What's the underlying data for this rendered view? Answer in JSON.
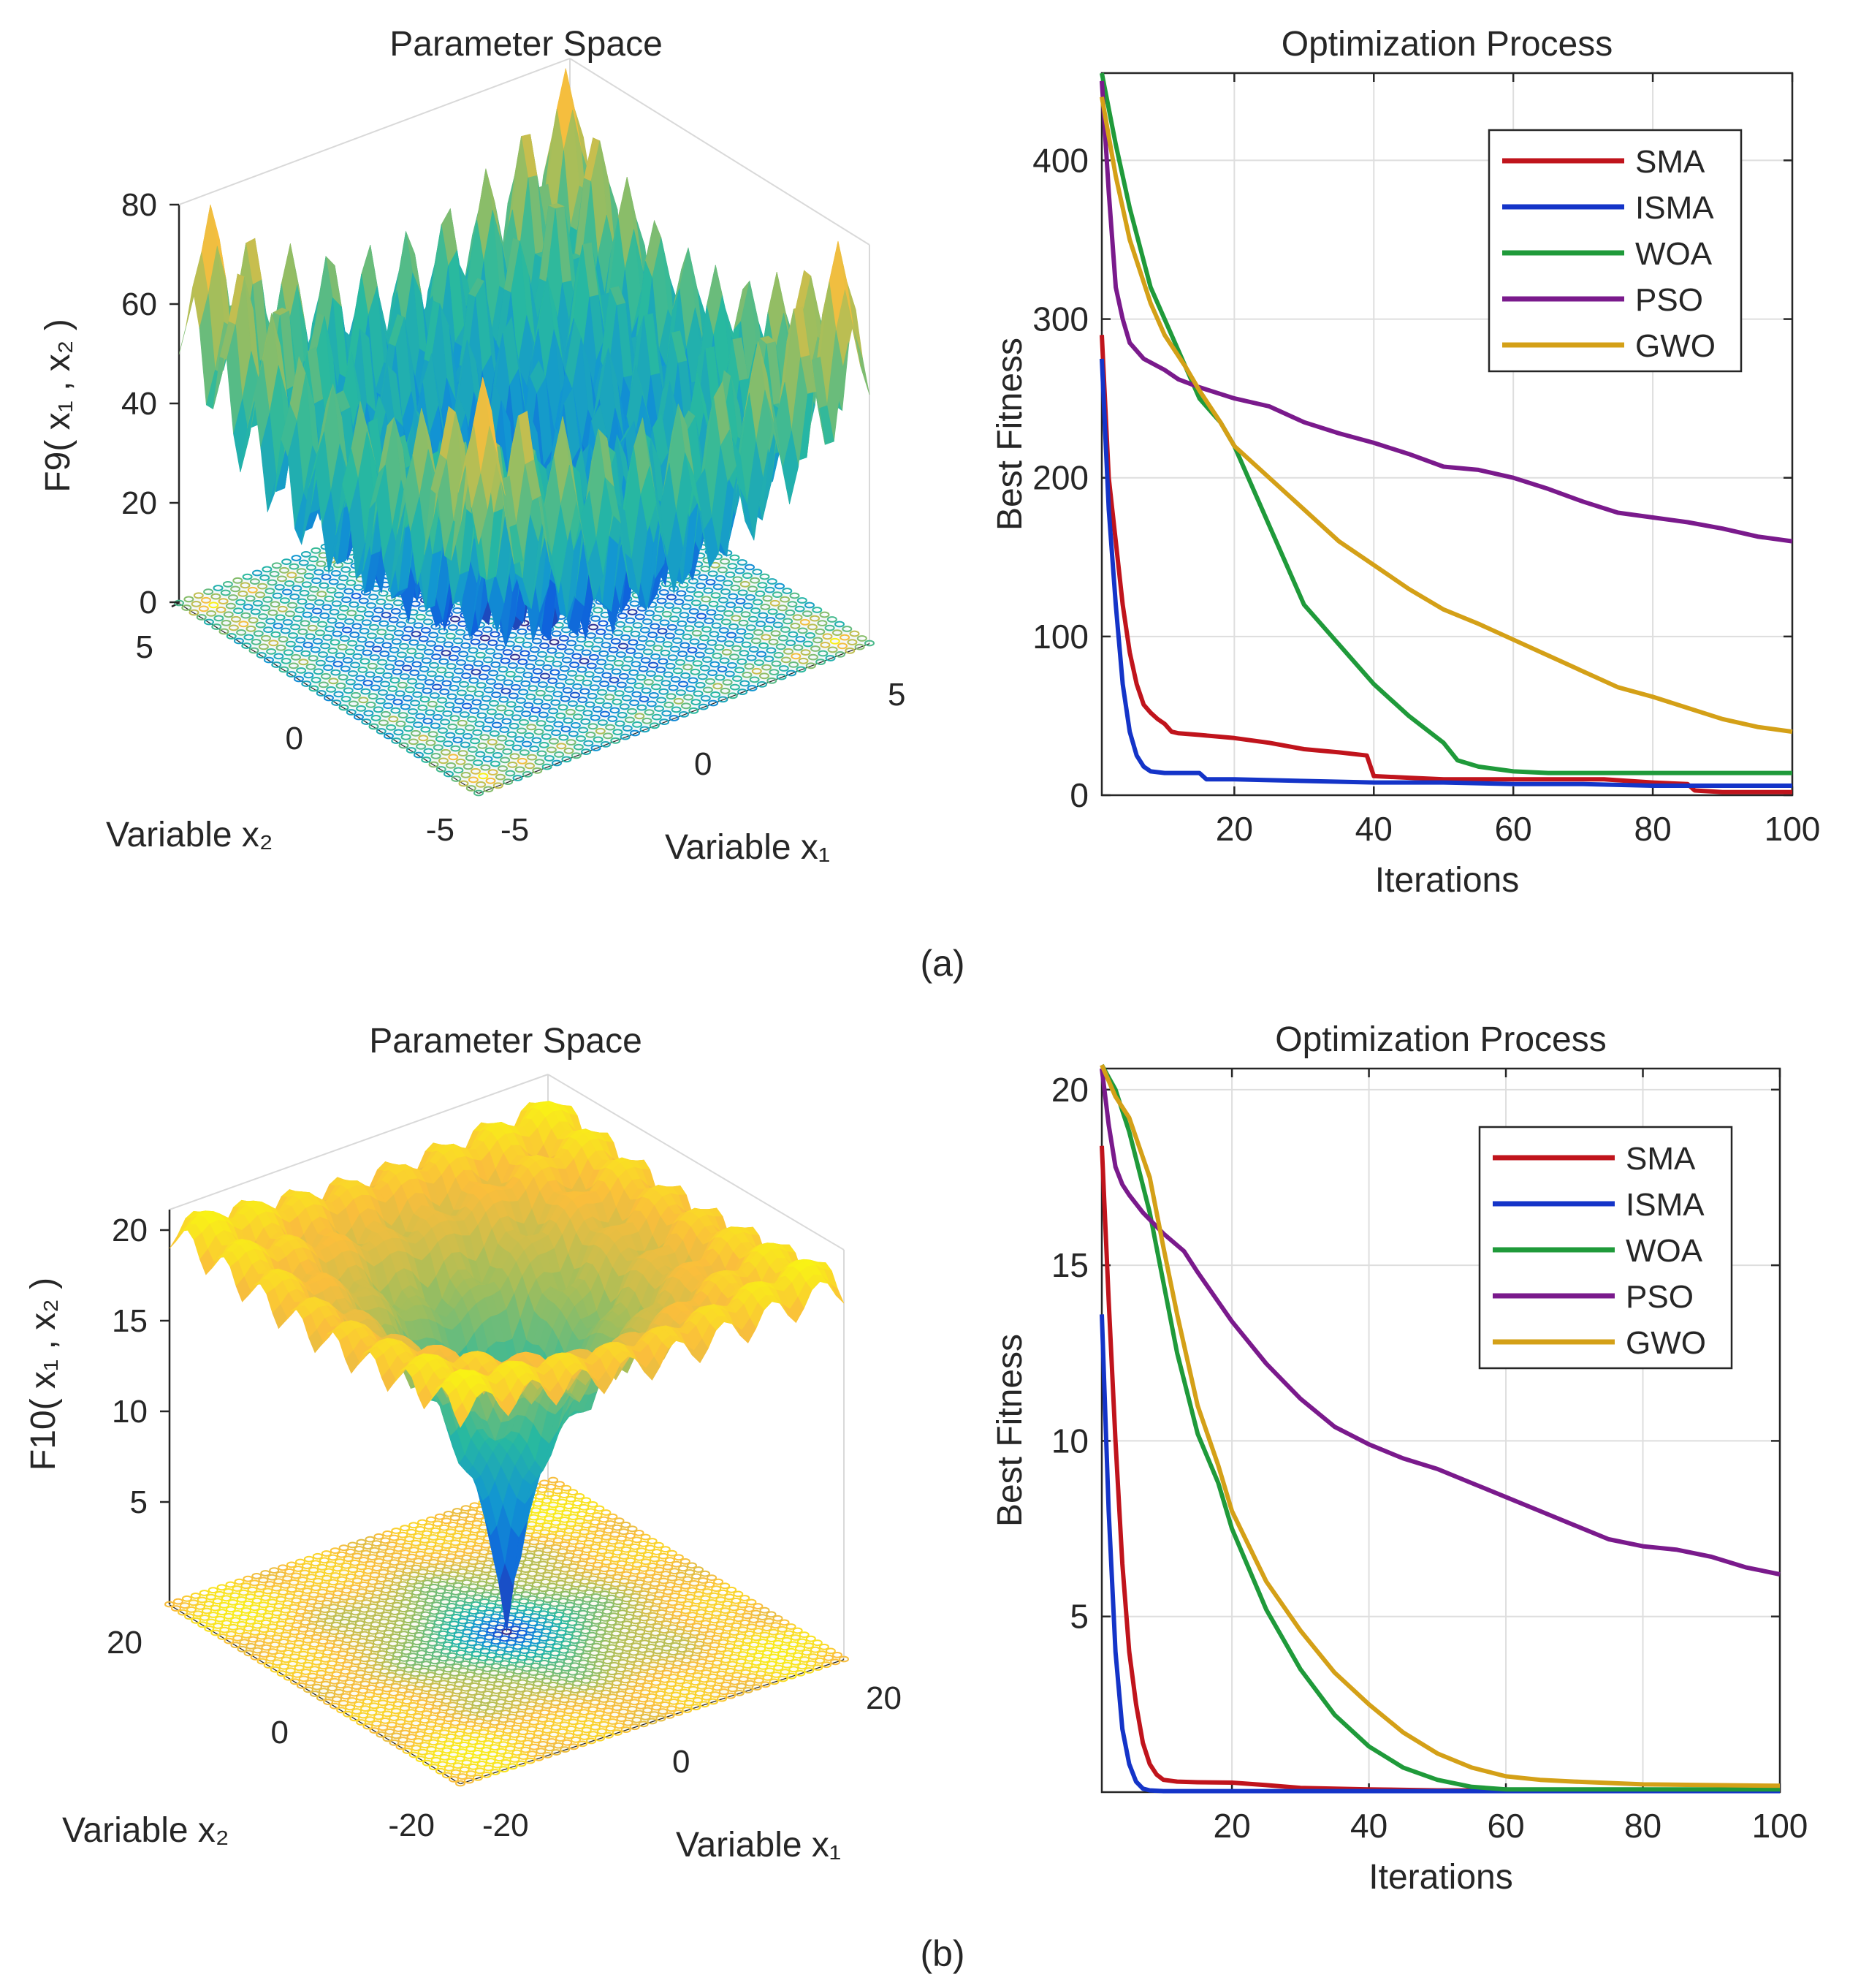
{
  "figure": {
    "panel_labels": [
      "(a)",
      "(b)"
    ]
  },
  "colors": {
    "SMA": "#c0141c",
    "ISMA": "#1434c8",
    "WOA": "#1f9a3a",
    "PSO": "#7a1a8c",
    "GWO": "#d4a017",
    "axis": "#262626",
    "grid": "#dedede"
  },
  "chart_data": [
    {
      "id": "a-surface",
      "type": "surface3d",
      "title": "Parameter Space",
      "function_label": "F9( x₁ , x₂ )",
      "function_name": "F9",
      "xlabel": "Variable x₁",
      "ylabel": "Variable x₂",
      "zlabel_ticks": [
        "0",
        "20",
        "40",
        "60",
        "80"
      ],
      "z_range": [
        0,
        80
      ],
      "x_ticks": [
        "-5",
        "0",
        "5"
      ],
      "y_ticks": [
        "-5",
        "0",
        "5"
      ],
      "x_range": [
        -5,
        5
      ],
      "y_range": [
        -5,
        5
      ],
      "function": "rastrigin"
    },
    {
      "id": "a-convergence",
      "type": "line",
      "title": "Optimization Process",
      "xlabel": "Iterations",
      "ylabel": "Best Fitness",
      "xlim": [
        1,
        100
      ],
      "ylim": [
        0,
        455
      ],
      "xticks": [
        20,
        40,
        60,
        80,
        100
      ],
      "yticks": [
        0,
        100,
        200,
        300,
        400
      ],
      "legend": [
        "SMA",
        "ISMA",
        "WOA",
        "PSO",
        "GWO"
      ],
      "series": [
        {
          "name": "SMA",
          "x": [
            1,
            2,
            3,
            4,
            5,
            6,
            7,
            8,
            9,
            10,
            11,
            12,
            15,
            20,
            25,
            30,
            35,
            39,
            40,
            45,
            50,
            60,
            70,
            73,
            80,
            85,
            86,
            90,
            100
          ],
          "y": [
            290,
            200,
            160,
            120,
            90,
            70,
            57,
            52,
            48,
            45,
            40,
            39,
            38,
            36,
            33,
            29,
            27,
            25,
            12,
            11,
            10,
            10,
            10,
            10,
            8,
            7,
            3,
            2,
            2
          ]
        },
        {
          "name": "ISMA",
          "x": [
            1,
            2,
            3,
            4,
            5,
            6,
            7,
            8,
            10,
            15,
            16,
            20,
            30,
            40,
            50,
            60,
            70,
            80,
            90,
            100
          ],
          "y": [
            275,
            180,
            120,
            70,
            40,
            25,
            18,
            15,
            14,
            14,
            10,
            10,
            9,
            8,
            8,
            7,
            7,
            6,
            6,
            6
          ]
        },
        {
          "name": "WOA",
          "x": [
            1,
            3,
            5,
            8,
            10,
            13,
            15,
            18,
            20,
            25,
            30,
            35,
            40,
            45,
            50,
            52,
            55,
            60,
            65,
            70,
            80,
            90,
            100
          ],
          "y": [
            455,
            410,
            370,
            320,
            300,
            270,
            250,
            235,
            220,
            170,
            120,
            95,
            70,
            50,
            33,
            22,
            18,
            15,
            14,
            14,
            14,
            14,
            14
          ]
        },
        {
          "name": "PSO",
          "x": [
            1,
            2,
            3,
            4,
            5,
            7,
            10,
            12,
            15,
            20,
            25,
            30,
            35,
            40,
            45,
            50,
            55,
            60,
            65,
            70,
            75,
            80,
            85,
            90,
            95,
            100
          ],
          "y": [
            450,
            380,
            320,
            300,
            285,
            275,
            268,
            262,
            257,
            250,
            245,
            235,
            228,
            222,
            215,
            207,
            205,
            200,
            193,
            185,
            178,
            175,
            172,
            168,
            163,
            160
          ]
        },
        {
          "name": "GWO",
          "x": [
            1,
            3,
            5,
            8,
            10,
            13,
            15,
            18,
            20,
            25,
            30,
            35,
            40,
            45,
            50,
            55,
            60,
            65,
            70,
            75,
            80,
            85,
            90,
            95,
            100
          ],
          "y": [
            440,
            390,
            350,
            310,
            290,
            270,
            255,
            235,
            220,
            200,
            180,
            160,
            145,
            130,
            117,
            108,
            98,
            88,
            78,
            68,
            62,
            55,
            48,
            43,
            40
          ]
        }
      ]
    },
    {
      "id": "b-surface",
      "type": "surface3d",
      "title": "Parameter Space",
      "function_label": "F10( x₁ , x₂ )",
      "function_name": "F10",
      "xlabel": "Variable x₁",
      "ylabel": "Variable x₂",
      "zlabel_ticks": [
        "5",
        "10",
        "15",
        "20"
      ],
      "z_range": [
        0,
        22
      ],
      "x_ticks": [
        "-20",
        "0",
        "20"
      ],
      "y_ticks": [
        "-20",
        "0",
        "20"
      ],
      "x_range": [
        -20,
        20
      ],
      "y_range": [
        -20,
        20
      ],
      "function": "ackley"
    },
    {
      "id": "b-convergence",
      "type": "line",
      "title": "Optimization Process",
      "xlabel": "Iterations",
      "ylabel": "Best Fitness",
      "xlim": [
        1,
        100
      ],
      "ylim": [
        0,
        20.6
      ],
      "xticks": [
        20,
        40,
        60,
        80,
        100
      ],
      "yticks": [
        5,
        10,
        15,
        20
      ],
      "legend": [
        "SMA",
        "ISMA",
        "WOA",
        "PSO",
        "GWO"
      ],
      "series": [
        {
          "name": "SMA",
          "x": [
            1,
            2,
            3,
            4,
            5,
            6,
            7,
            8,
            9,
            10,
            12,
            15,
            20,
            25,
            30,
            40,
            50,
            60,
            100
          ],
          "y": [
            18.4,
            14,
            10,
            6.5,
            4,
            2.5,
            1.4,
            0.8,
            0.5,
            0.35,
            0.3,
            0.28,
            0.27,
            0.2,
            0.12,
            0.08,
            0.05,
            0.05,
            0.05
          ]
        },
        {
          "name": "ISMA",
          "x": [
            1,
            2,
            3,
            4,
            5,
            6,
            7,
            8,
            10,
            15,
            20,
            40,
            100
          ],
          "y": [
            13.6,
            8,
            4,
            1.8,
            0.8,
            0.3,
            0.1,
            0.05,
            0.03,
            0.03,
            0.03,
            0.03,
            0.03
          ]
        },
        {
          "name": "WOA",
          "x": [
            1,
            3,
            5,
            8,
            10,
            12,
            15,
            18,
            20,
            25,
            30,
            35,
            40,
            45,
            50,
            55,
            60,
            70,
            80,
            100
          ],
          "y": [
            20.7,
            20,
            18.8,
            16.5,
            14.5,
            12.5,
            10.2,
            8.8,
            7.5,
            5.2,
            3.5,
            2.2,
            1.3,
            0.7,
            0.35,
            0.15,
            0.08,
            0.08,
            0.08,
            0.08
          ]
        },
        {
          "name": "PSO",
          "x": [
            1,
            2,
            3,
            4,
            5,
            7,
            10,
            13,
            15,
            20,
            25,
            30,
            35,
            40,
            45,
            50,
            55,
            60,
            65,
            70,
            75,
            80,
            85,
            90,
            95,
            100
          ],
          "y": [
            20.6,
            19,
            17.8,
            17.3,
            17,
            16.5,
            15.9,
            15.4,
            14.8,
            13.4,
            12.2,
            11.2,
            10.4,
            9.9,
            9.5,
            9.2,
            8.8,
            8.4,
            8.0,
            7.6,
            7.2,
            7.0,
            6.9,
            6.7,
            6.4,
            6.2
          ]
        },
        {
          "name": "GWO",
          "x": [
            1,
            3,
            5,
            8,
            10,
            12,
            15,
            18,
            20,
            25,
            30,
            35,
            40,
            45,
            50,
            55,
            60,
            65,
            70,
            80,
            90,
            100
          ],
          "y": [
            20.7,
            19.8,
            19.2,
            17.5,
            15.5,
            13.6,
            11.0,
            9.3,
            8.0,
            6.0,
            4.6,
            3.4,
            2.5,
            1.7,
            1.1,
            0.7,
            0.45,
            0.35,
            0.3,
            0.22,
            0.2,
            0.18
          ]
        }
      ]
    }
  ]
}
